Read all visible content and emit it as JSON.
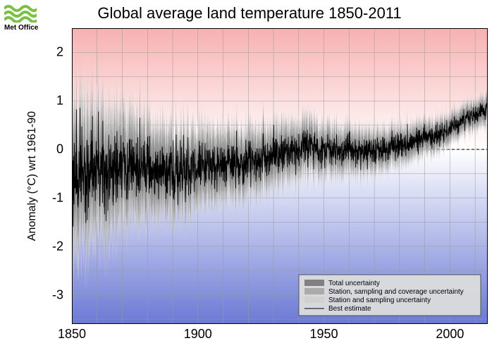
{
  "logo": {
    "brand": "Met Office",
    "wave_color": "#7ac143"
  },
  "chart": {
    "type": "line",
    "title": "Global average land temperature 1850-2011",
    "ylabel": "Anomaly (°C) wrt 1961-90",
    "xlim": [
      1850,
      2015
    ],
    "ylim": [
      -3.6,
      2.5
    ],
    "xticks": [
      1850,
      1900,
      1950,
      2000
    ],
    "yticks": [
      -3,
      -2,
      -1,
      0,
      1,
      2
    ],
    "xtick_fontsize": 18,
    "ytick_fontsize": 18,
    "title_fontsize": 22,
    "ylabel_fontsize": 16,
    "background_gradient": {
      "top_color": "#f7b0b0",
      "zero_color": "#ffffff",
      "bottom_color": "#6a79d4"
    },
    "grid_color": "#999999",
    "border_color": "#000000",
    "zero_line_dash": "4,3",
    "series": {
      "total_uncertainty_color": "#808080",
      "station_sampling_coverage_color": "#aaaaaa",
      "station_sampling_color": "#d0d0d0",
      "best_estimate_color": "#000000",
      "best_estimate_width": 0.9,
      "band_alpha": 0.9
    },
    "trend": {
      "years": [
        1850,
        1855,
        1860,
        1865,
        1870,
        1875,
        1880,
        1885,
        1890,
        1895,
        1900,
        1905,
        1910,
        1915,
        1920,
        1925,
        1930,
        1935,
        1940,
        1945,
        1950,
        1955,
        1960,
        1965,
        1970,
        1975,
        1980,
        1985,
        1990,
        1995,
        2000,
        2005,
        2010,
        2015
      ],
      "best": [
        -0.55,
        -0.5,
        -0.45,
        -0.45,
        -0.4,
        -0.35,
        -0.35,
        -0.4,
        -0.45,
        -0.4,
        -0.35,
        -0.35,
        -0.3,
        -0.25,
        -0.2,
        -0.15,
        -0.1,
        -0.05,
        0.0,
        0.05,
        0.0,
        -0.05,
        0.0,
        -0.05,
        0.0,
        0.0,
        0.1,
        0.1,
        0.25,
        0.3,
        0.45,
        0.6,
        0.7,
        0.8
      ],
      "unc_total": [
        1.6,
        1.5,
        1.4,
        1.3,
        1.2,
        1.1,
        1.0,
        0.95,
        0.9,
        0.85,
        0.8,
        0.78,
        0.75,
        0.72,
        0.7,
        0.68,
        0.65,
        0.62,
        0.6,
        0.58,
        0.55,
        0.52,
        0.5,
        0.48,
        0.45,
        0.43,
        0.4,
        0.38,
        0.36,
        0.34,
        0.32,
        0.3,
        0.3,
        0.3
      ],
      "unc_mid": [
        1.1,
        1.05,
        1.0,
        0.95,
        0.9,
        0.85,
        0.8,
        0.76,
        0.72,
        0.68,
        0.65,
        0.62,
        0.6,
        0.57,
        0.55,
        0.53,
        0.5,
        0.48,
        0.46,
        0.44,
        0.42,
        0.4,
        0.38,
        0.36,
        0.34,
        0.32,
        0.3,
        0.29,
        0.28,
        0.27,
        0.25,
        0.24,
        0.24,
        0.24
      ],
      "unc_inner": [
        0.7,
        0.67,
        0.64,
        0.61,
        0.58,
        0.55,
        0.52,
        0.5,
        0.48,
        0.46,
        0.44,
        0.42,
        0.4,
        0.38,
        0.36,
        0.35,
        0.33,
        0.32,
        0.3,
        0.29,
        0.27,
        0.26,
        0.25,
        0.24,
        0.23,
        0.22,
        0.21,
        0.2,
        0.19,
        0.18,
        0.17,
        0.16,
        0.16,
        0.16
      ]
    },
    "noise": {
      "points": 1940,
      "scale_best_factor": 0.3,
      "seed": 127733
    },
    "legend": {
      "bg_color": "#dcdcdc",
      "border_color": "#555555",
      "items": [
        {
          "swatch": "#808080",
          "label": "Total uncertainty"
        },
        {
          "swatch": "#aaaaaa",
          "label": "Station, sampling and coverage uncertainty"
        },
        {
          "swatch": "#d0d0d0",
          "label": "Station and sampling uncertainty"
        },
        {
          "swatch": "line",
          "label": "Best estimate"
        }
      ]
    }
  }
}
